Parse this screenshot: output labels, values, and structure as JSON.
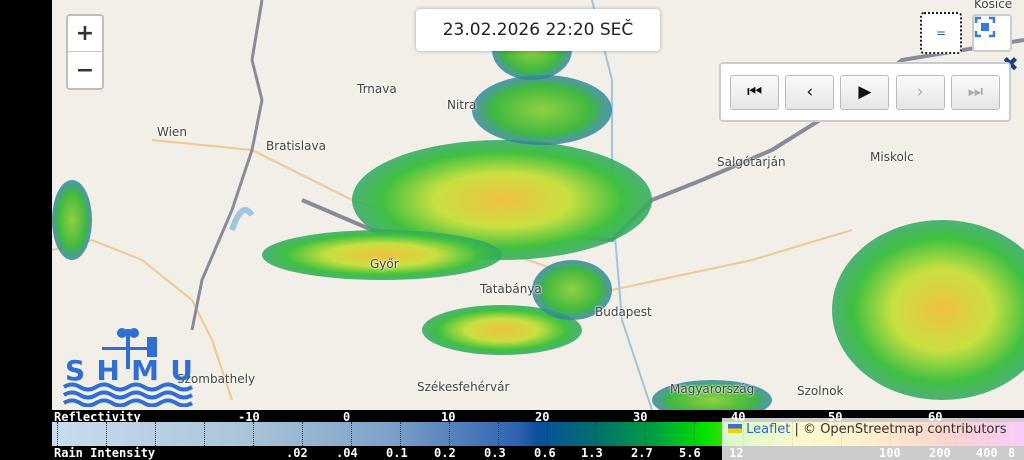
{
  "timestamp": "23.02.2026 22:20 SEČ",
  "zoom": {
    "in_label": "+",
    "out_label": "−"
  },
  "layer_button_label": "=",
  "player": {
    "buttons": [
      {
        "name": "first-frame-button",
        "glyph": "⏮",
        "enabled": true
      },
      {
        "name": "previous-frame-button",
        "glyph": "‹",
        "enabled": true
      },
      {
        "name": "play-button",
        "glyph": "▶",
        "enabled": true
      },
      {
        "name": "next-frame-button",
        "glyph": "›",
        "enabled": false
      },
      {
        "name": "last-frame-button",
        "glyph": "⏭",
        "enabled": false
      }
    ]
  },
  "close_glyph": "✖",
  "cities": [
    "Košice",
    "Miskolc",
    "Salgótarján",
    "Trnava",
    "Nitra",
    "Wien",
    "Bratislava",
    "Győr",
    "Tatabánya",
    "Budapest",
    "Szombathely",
    "Székesfehérvár",
    "Magyarország",
    "Szolnok"
  ],
  "logo_text": "SHMU",
  "legend": {
    "reflectivity_title": "Reflectivity",
    "reflectivity_ticks": [
      "-10",
      "0",
      "10",
      "20",
      "30",
      "40",
      "50",
      "60"
    ],
    "rain_title": "Rain Intensity",
    "rain_ticks": [
      ".02",
      ".04",
      "0.1",
      "0.2",
      "0.3",
      "0.6",
      "1.3",
      "2.7",
      "5.6",
      "12",
      "100",
      "200",
      "400",
      "8"
    ]
  },
  "attribution": {
    "leaflet": "Leaflet",
    "rest": "| © OpenStreetmap contributors"
  },
  "colors": {
    "accent": "#2a6bbf",
    "logo": "#2f6fd0"
  }
}
